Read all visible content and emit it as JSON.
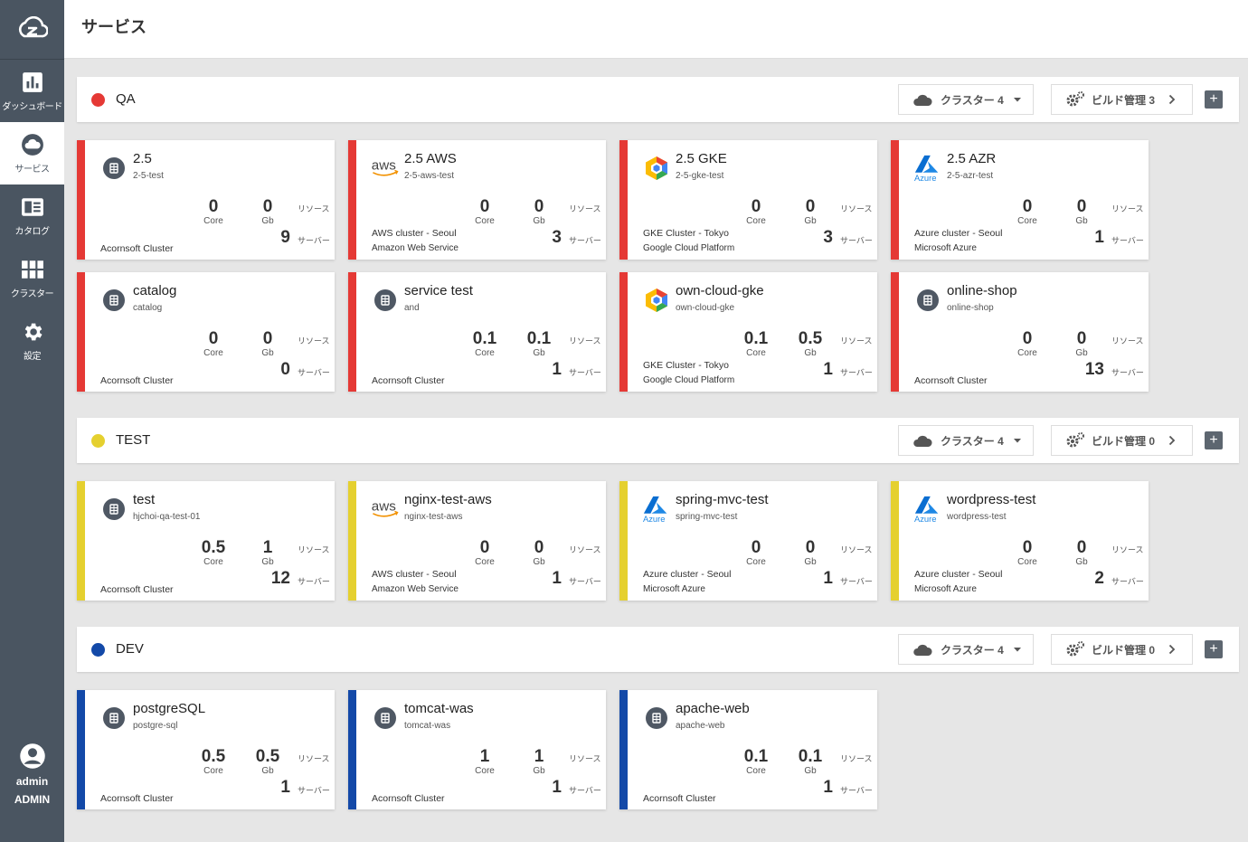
{
  "app": {
    "page_title": "サービス"
  },
  "sidebar": {
    "items": [
      {
        "label": "ダッシュボード",
        "icon": "chart-bar-icon"
      },
      {
        "label": "サービス",
        "icon": "cloud-icon"
      },
      {
        "label": "カタログ",
        "icon": "catalog-icon"
      },
      {
        "label": "クラスター",
        "icon": "grid-icon"
      },
      {
        "label": "設定",
        "icon": "gear-icon"
      }
    ],
    "user": {
      "name": "admin",
      "role": "ADMIN"
    }
  },
  "labels": {
    "core": "Core",
    "gb": "Gb",
    "resource": "リソース",
    "server": "サーバー"
  },
  "groups": [
    {
      "name": "QA",
      "color": "#e53935",
      "cluster_btn": "クラスター 4",
      "build_btn": "ビルド管理 3",
      "cards": [
        {
          "icon": "k8s",
          "title": "2.5",
          "sub": "2-5-test",
          "core": "0",
          "gb": "0",
          "servers": "9",
          "line1": "",
          "line2": "Acornsoft Cluster"
        },
        {
          "icon": "aws",
          "title": "2.5 AWS",
          "sub": "2-5-aws-test",
          "core": "0",
          "gb": "0",
          "servers": "3",
          "line1": "AWS cluster - Seoul",
          "line2": "Amazon Web Service"
        },
        {
          "icon": "gke",
          "title": "2.5 GKE",
          "sub": "2-5-gke-test",
          "core": "0",
          "gb": "0",
          "servers": "3",
          "line1": "GKE Cluster - Tokyo",
          "line2": "Google Cloud Platform"
        },
        {
          "icon": "azure",
          "title": "2.5 AZR",
          "sub": "2-5-azr-test",
          "core": "0",
          "gb": "0",
          "servers": "1",
          "line1": "Azure cluster - Seoul",
          "line2": "Microsoft Azure"
        },
        {
          "icon": "k8s",
          "title": "catalog",
          "sub": "catalog",
          "core": "0",
          "gb": "0",
          "servers": "0",
          "line1": "",
          "line2": "Acornsoft Cluster"
        },
        {
          "icon": "k8s",
          "title": "service test",
          "sub": "and",
          "core": "0.1",
          "gb": "0.1",
          "servers": "1",
          "line1": "",
          "line2": "Acornsoft Cluster"
        },
        {
          "icon": "gke",
          "title": "own-cloud-gke",
          "sub": "own-cloud-gke",
          "core": "0.1",
          "gb": "0.5",
          "servers": "1",
          "line1": "GKE Cluster - Tokyo",
          "line2": "Google Cloud Platform"
        },
        {
          "icon": "k8s",
          "title": "online-shop",
          "sub": "online-shop",
          "core": "0",
          "gb": "0",
          "servers": "13",
          "line1": "",
          "line2": "Acornsoft Cluster"
        }
      ]
    },
    {
      "name": "TEST",
      "color": "#e5d02f",
      "cluster_btn": "クラスター 4",
      "build_btn": "ビルド管理 0",
      "cards": [
        {
          "icon": "k8s",
          "title": "test",
          "sub": "hjchoi-qa-test-01",
          "core": "0.5",
          "gb": "1",
          "servers": "12",
          "line1": "",
          "line2": "Acornsoft Cluster"
        },
        {
          "icon": "aws",
          "title": "nginx-test-aws",
          "sub": "nginx-test-aws",
          "core": "0",
          "gb": "0",
          "servers": "1",
          "line1": "AWS cluster - Seoul",
          "line2": "Amazon Web Service"
        },
        {
          "icon": "azure",
          "title": "spring-mvc-test",
          "sub": "spring-mvc-test",
          "core": "0",
          "gb": "0",
          "servers": "1",
          "line1": "Azure cluster - Seoul",
          "line2": "Microsoft Azure"
        },
        {
          "icon": "azure",
          "title": "wordpress-test",
          "sub": "wordpress-test",
          "core": "0",
          "gb": "0",
          "servers": "2",
          "line1": "Azure cluster - Seoul",
          "line2": "Microsoft Azure"
        }
      ]
    },
    {
      "name": "DEV",
      "color": "#1349a8",
      "cluster_btn": "クラスター 4",
      "build_btn": "ビルド管理 0",
      "cards": [
        {
          "icon": "k8s",
          "title": "postgreSQL",
          "sub": "postgre-sql",
          "core": "0.5",
          "gb": "0.5",
          "servers": "1",
          "line1": "",
          "line2": "Acornsoft Cluster"
        },
        {
          "icon": "k8s",
          "title": "tomcat-was",
          "sub": "tomcat-was",
          "core": "1",
          "gb": "1",
          "servers": "1",
          "line1": "",
          "line2": "Acornsoft Cluster"
        },
        {
          "icon": "k8s",
          "title": "apache-web",
          "sub": "apache-web",
          "core": "0.1",
          "gb": "0.1",
          "servers": "1",
          "line1": "",
          "line2": "Acornsoft Cluster"
        }
      ]
    }
  ]
}
